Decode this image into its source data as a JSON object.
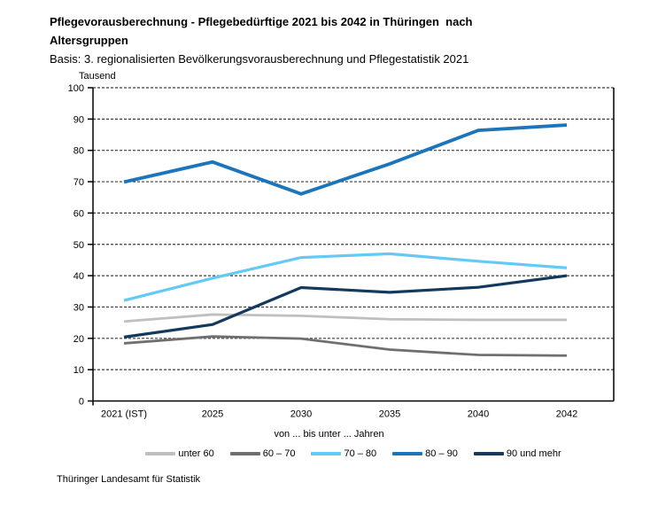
{
  "header": {
    "title_line1": "Pflegevorausberechnung - Pflegebedürftige 2021 bis 2042 in Thüringen  nach",
    "title_line2": "Altersgruppen",
    "subtitle": "Basis: 3. regionalisierten Bevölkerungsvorausberechnung und Pflegestatistik 2021"
  },
  "footer": {
    "source": "Thüringer Landesamt für Statistik"
  },
  "chart_data": {
    "type": "line",
    "title": "Pflegevorausberechnung - Pflegebedürftige 2021 bis 2042 in Thüringen nach Altersgruppen",
    "subtitle": "Basis: 3. regionalisierten Bevölkerungsvorausberechnung und Pflegestatistik 2021",
    "y_unit_label": "Tausend",
    "xlabel": "von ... bis unter ... Jahren",
    "ylabel": "",
    "categories": [
      "2021 (IST)",
      "2025",
      "2030",
      "2035",
      "2040",
      "2042"
    ],
    "ylim": [
      0,
      100
    ],
    "ytick_step": 10,
    "grid": "horizontal-dashed",
    "legend_position": "bottom",
    "series": [
      {
        "name": "unter 60",
        "color": "#BFBFBF",
        "width": 2.8,
        "values": [
          25.4,
          27.6,
          27.2,
          26.1,
          25.9,
          25.9
        ]
      },
      {
        "name": "60 – 70",
        "color": "#6F6F6F",
        "width": 2.8,
        "values": [
          18.4,
          20.6,
          19.9,
          16.4,
          14.7,
          14.5
        ]
      },
      {
        "name": "70 – 80",
        "color": "#63C9F5",
        "width": 3.2,
        "values": [
          32.1,
          39.2,
          45.8,
          47.0,
          44.6,
          42.5
        ]
      },
      {
        "name": "80 – 90",
        "color": "#1C74BB",
        "width": 3.8,
        "values": [
          69.9,
          76.3,
          66.1,
          75.7,
          86.4,
          88.1
        ]
      },
      {
        "name": "90 und mehr",
        "color": "#133A5C",
        "width": 3.2,
        "values": [
          20.4,
          24.4,
          36.2,
          34.7,
          36.3,
          40.0
        ]
      }
    ]
  }
}
